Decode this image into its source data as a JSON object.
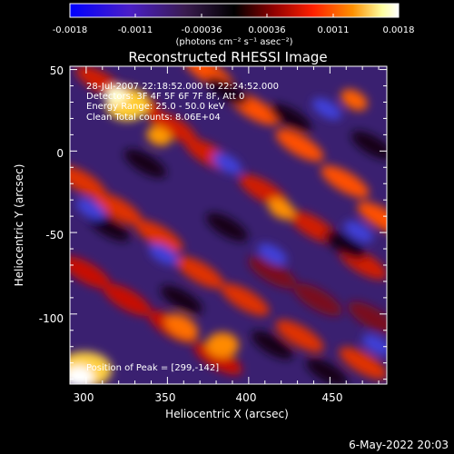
{
  "chart_data": {
    "type": "heatmap",
    "title": "Reconstructed RHESSI Image",
    "xlabel": "Heliocentric X (arcsec)",
    "ylabel": "Heliocentric Y (arcsec)",
    "xlim": [
      290,
      485
    ],
    "ylim": [
      -143,
      52
    ],
    "x_ticks": [
      300,
      350,
      400,
      450
    ],
    "y_ticks": [
      50,
      0,
      -50,
      -100
    ],
    "colorbar": {
      "ticks": [
        "-0.0018",
        "-0.0011",
        "-0.00036",
        "0.00036",
        "0.0011",
        "0.0018"
      ],
      "unit_label": "(photons cm⁻² s⁻¹ asec⁻²)",
      "range": [
        -0.0018,
        0.0018
      ],
      "colors": [
        "#0000ff",
        "#5a1ea8",
        "#3c2060",
        "#000000",
        "#8a0000",
        "#ff2000",
        "#ff9a00",
        "#ffffa0",
        "#ffffff"
      ]
    },
    "annotations": [
      "28-Jul-2007 22:18:52.000 to 22:24:52.000",
      "Detectors: 3F 4F 5F 6F 7F 8F, Att 0",
      "Energy Range: 25.0 - 50.0 keV",
      "Clean    Total counts: 8.06E+04"
    ],
    "peak_label": "Position of Peak = [299,-142]",
    "peak": [
      299,
      -142
    ]
  },
  "footer": {
    "date": "6-May-2022 20:03"
  }
}
